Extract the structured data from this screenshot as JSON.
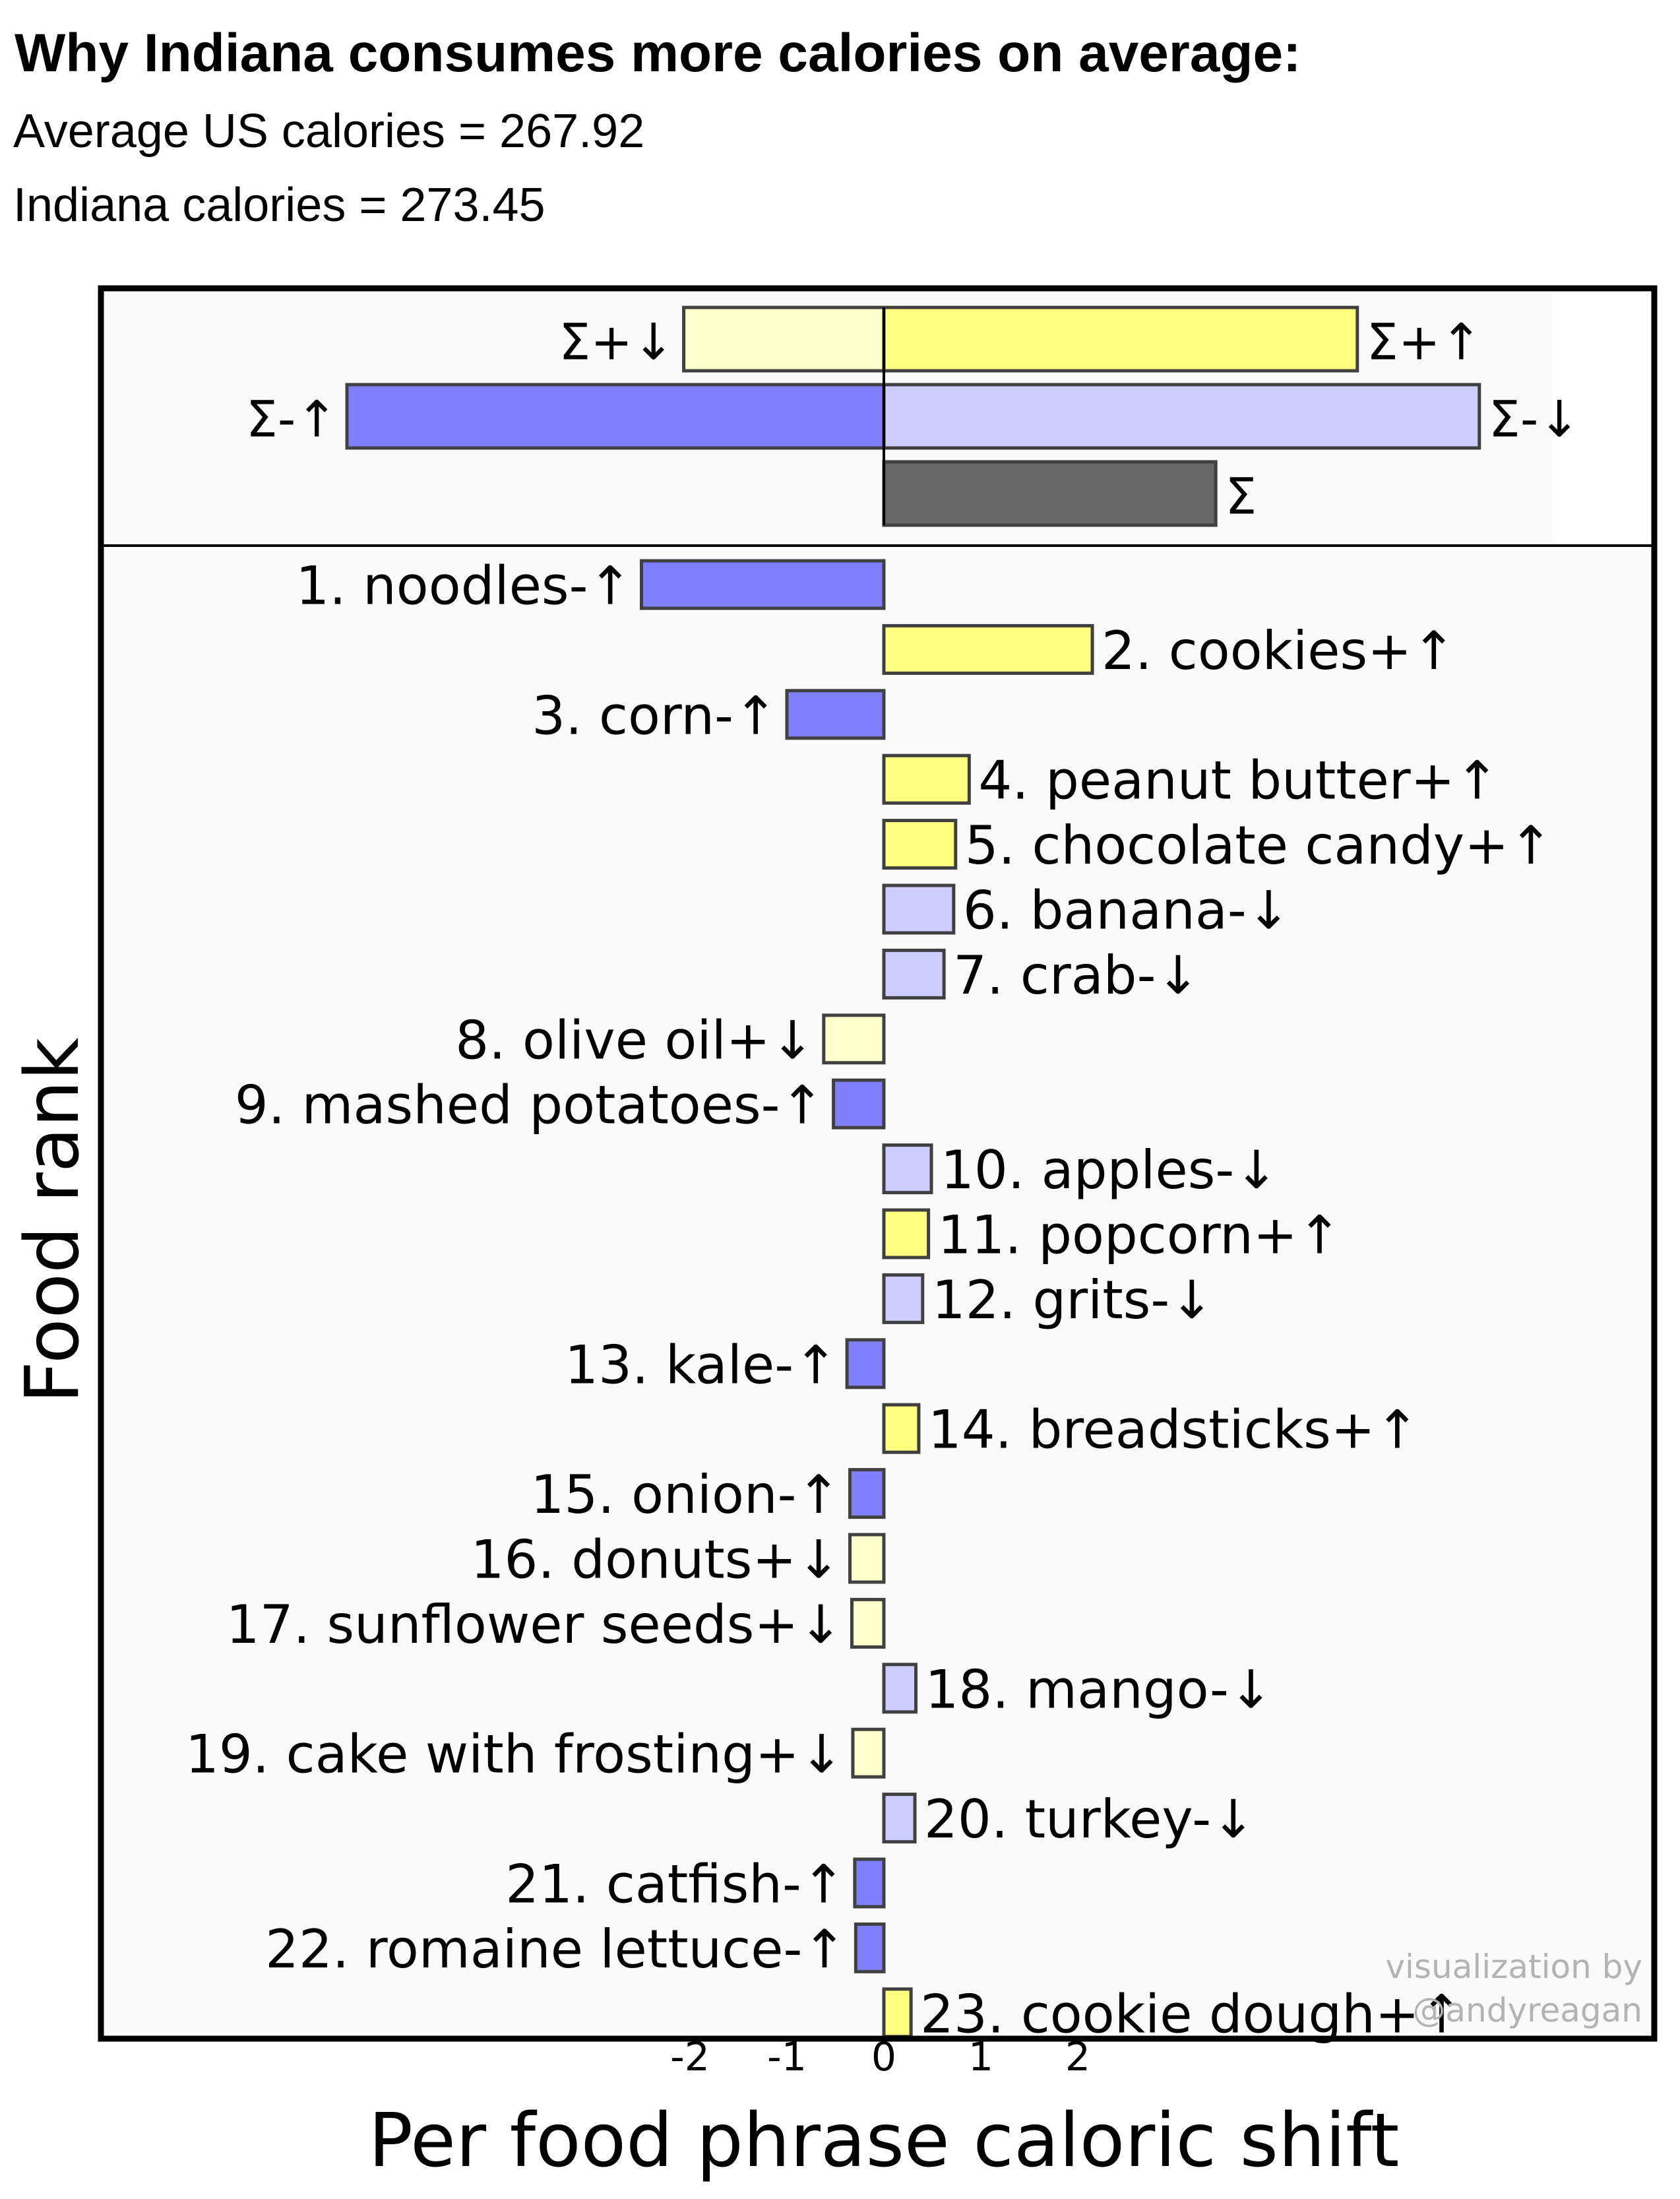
{
  "header": {
    "title": "Why Indiana consumes more calories on average:",
    "line1": "Average US calories = 267.92",
    "line2": "Indiana calories = 273.45"
  },
  "colors": {
    "pos_up": "#ffff80",
    "pos_down": "#ffffcc",
    "neg_up": "#8080ff",
    "neg_down": "#ccccff",
    "sum": "#666666",
    "panel_bg": "#fafafa",
    "stroke": "#404040"
  },
  "chart_data": {
    "type": "bar",
    "orientation": "horizontal",
    "xlabel": "Per food phrase caloric shift",
    "ylabel": "Food rank",
    "xlim": [
      -4.3,
      8.0
    ],
    "xticks": [
      "-2",
      "-1",
      "0",
      "1",
      "2"
    ],
    "summary": [
      {
        "label": "Σ+↓",
        "value": -2.05,
        "kind": "pos_down"
      },
      {
        "label": "Σ+↑",
        "value": 4.85,
        "kind": "pos_up"
      },
      {
        "label": "Σ-↑",
        "value": -5.5,
        "kind": "neg_up"
      },
      {
        "label": "Σ-↓",
        "value": 6.1,
        "kind": "neg_down"
      },
      {
        "label": "Σ",
        "value": 3.4,
        "kind": "sum"
      }
    ],
    "foods": [
      {
        "label": "1. noodles-↑",
        "value": -2.5,
        "kind": "neg_up"
      },
      {
        "label": "2. cookies+↑",
        "value": 2.15,
        "kind": "pos_up"
      },
      {
        "label": "3. corn-↑",
        "value": -1.0,
        "kind": "neg_up"
      },
      {
        "label": "4. peanut butter+↑",
        "value": 0.88,
        "kind": "pos_up"
      },
      {
        "label": "5. chocolate candy+↑",
        "value": 0.74,
        "kind": "pos_up"
      },
      {
        "label": "6. banana-↓",
        "value": 0.72,
        "kind": "neg_down"
      },
      {
        "label": "7. crab-↓",
        "value": 0.62,
        "kind": "neg_down"
      },
      {
        "label": "8. olive oil+↓",
        "value": -0.62,
        "kind": "pos_down"
      },
      {
        "label": "9. mashed potatoes-↑",
        "value": -0.52,
        "kind": "neg_up"
      },
      {
        "label": "10. apples-↓",
        "value": 0.49,
        "kind": "neg_down"
      },
      {
        "label": "11. popcorn+↑",
        "value": 0.46,
        "kind": "pos_up"
      },
      {
        "label": "12. grits-↓",
        "value": 0.4,
        "kind": "neg_down"
      },
      {
        "label": "13. kale-↑",
        "value": -0.38,
        "kind": "neg_up"
      },
      {
        "label": "14. breadsticks+↑",
        "value": 0.36,
        "kind": "pos_up"
      },
      {
        "label": "15. onion-↑",
        "value": -0.35,
        "kind": "neg_up"
      },
      {
        "label": "16. donuts+↓",
        "value": -0.35,
        "kind": "pos_down"
      },
      {
        "label": "17. sunflower seeds+↓",
        "value": -0.33,
        "kind": "pos_down"
      },
      {
        "label": "18. mango-↓",
        "value": 0.33,
        "kind": "neg_down"
      },
      {
        "label": "19. cake with frosting+↓",
        "value": -0.32,
        "kind": "pos_down"
      },
      {
        "label": "20. turkey-↓",
        "value": 0.32,
        "kind": "neg_down"
      },
      {
        "label": "21. catfish-↑",
        "value": -0.3,
        "kind": "neg_up"
      },
      {
        "label": "22. romaine lettuce-↑",
        "value": -0.29,
        "kind": "neg_up"
      },
      {
        "label": "23. cookie dough+↑",
        "value": 0.28,
        "kind": "pos_up"
      }
    ],
    "watermark": [
      "visualization by",
      "@andyreagan"
    ],
    "grid": false,
    "legend": "none"
  }
}
